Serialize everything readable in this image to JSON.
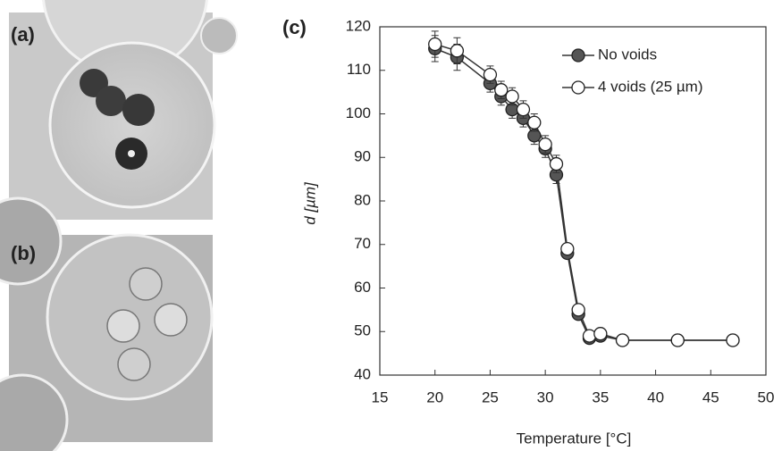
{
  "panel_labels": [
    "(a)",
    "(b)",
    "(c)"
  ],
  "chart_data": {
    "type": "line",
    "xlabel": "Temperature [°C]",
    "ylabel": "d [µm]",
    "x": [
      20,
      22,
      25,
      26,
      27,
      28,
      29,
      30,
      31,
      32,
      33,
      34,
      35,
      37,
      42,
      47
    ],
    "series": [
      {
        "name": "No voids",
        "color": "#555555",
        "marker": "filled",
        "values": [
          115,
          113,
          107,
          104,
          101,
          99,
          95,
          92,
          86,
          68,
          54,
          48.5,
          49,
          48,
          48,
          48
        ],
        "errors": [
          3,
          3,
          2,
          2,
          2,
          2,
          2,
          2,
          2,
          1,
          1,
          1,
          1,
          1,
          1,
          1
        ]
      },
      {
        "name": "4 voids (25 µm)",
        "color": "#ffffff",
        "marker": "open",
        "values": [
          116,
          114.5,
          109,
          105.5,
          104,
          101,
          98,
          93,
          88.5,
          69,
          55,
          49,
          49.5,
          48,
          48,
          48
        ],
        "errors": [
          3,
          3,
          2,
          2,
          2,
          2,
          2,
          2,
          2,
          1,
          1,
          1,
          1,
          1,
          1,
          1
        ]
      }
    ],
    "xlim": [
      15,
      50
    ],
    "xticks": [
      15,
      20,
      25,
      30,
      35,
      40,
      45,
      50
    ],
    "ylim": [
      40,
      120
    ],
    "yticks": [
      40,
      50,
      60,
      70,
      80,
      90,
      100,
      110,
      120
    ],
    "legend": "upper right"
  }
}
